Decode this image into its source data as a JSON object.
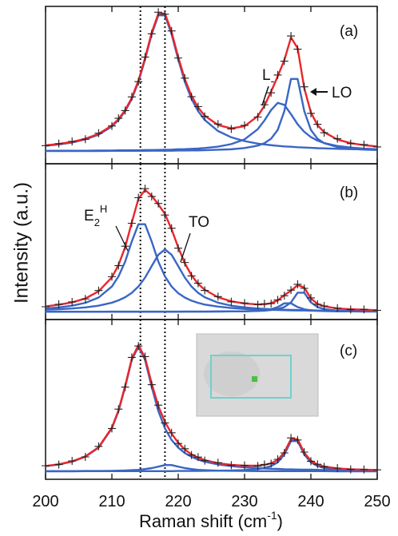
{
  "chart_data": [
    {
      "type": "line",
      "panel_label": "(a)",
      "annotations": [
        {
          "text": "L",
          "sub": "-"
        },
        {
          "text": "LO"
        }
      ],
      "xlim": [
        200,
        250
      ],
      "ylim": [
        0,
        100
      ],
      "xticks": [
        200,
        210,
        220,
        230,
        240,
        250
      ],
      "vlines": [
        214.3,
        218
      ],
      "x": [
        200,
        202,
        204,
        206,
        208,
        210,
        211,
        212,
        213,
        214,
        215,
        216,
        217,
        218,
        219,
        220,
        221,
        222,
        223,
        224,
        226,
        228,
        230,
        232,
        233,
        234,
        235,
        236,
        237,
        238,
        239,
        240,
        241,
        242,
        244,
        246,
        248,
        250
      ],
      "series": [
        {
          "color": "#3a66c4",
          "style": "line",
          "values": [
            11.4,
            12.3,
            13.5,
            15.5,
            18.5,
            23.7,
            27.8,
            33.4,
            41.2,
            52,
            66.3,
            82.3,
            94.3,
            94.3,
            82.3,
            66.3,
            52,
            41.2,
            33.4,
            27.8,
            20.8,
            16.8,
            14.4,
            12.8,
            12.3,
            11.8,
            11.4,
            11,
            10.8,
            10.5,
            10.3,
            10.1,
            9.9,
            9.8,
            9.5,
            9.3,
            9.2,
            9
          ]
        },
        {
          "color": "#3a66c4",
          "style": "line",
          "values": [
            8.2,
            8.3,
            8.3,
            8.3,
            8.4,
            8.4,
            8.5,
            8.5,
            8.6,
            8.6,
            8.7,
            8.7,
            8.8,
            8.9,
            9,
            9.2,
            9.3,
            9.5,
            9.7,
            10,
            10.9,
            12.5,
            15.5,
            22,
            27.5,
            34.1,
            38.7,
            37.4,
            31.5,
            25.1,
            20.3,
            17,
            14.7,
            13.2,
            11.3,
            10.3,
            9.6,
            9.2
          ]
        },
        {
          "color": "#3a66c4",
          "style": "line",
          "values": [
            8.1,
            8.1,
            8.1,
            8.1,
            8.1,
            8.2,
            8.2,
            8.2,
            8.2,
            8.2,
            8.2,
            8.3,
            8.3,
            8.3,
            8.3,
            8.4,
            8.4,
            8.5,
            8.5,
            8.6,
            8.9,
            9.2,
            10,
            11.5,
            13.1,
            15.9,
            21.5,
            33.5,
            53.9,
            53.9,
            33.5,
            21.5,
            15.9,
            13.1,
            10.6,
            9.5,
            9,
            8.7
          ]
        },
        {
          "color": "#e8262b",
          "style": "line",
          "values": [
            11.7,
            12.6,
            13.9,
            15.9,
            19,
            24.3,
            28.4,
            34.1,
            41.9,
            52.8,
            67.2,
            83.3,
            95.4,
            95.5,
            83.7,
            67.8,
            53.7,
            43.2,
            35.7,
            30.5,
            24.6,
            22.5,
            23.9,
            30.3,
            36.9,
            45.8,
            55.6,
            65.9,
            80.2,
            73.5,
            48.1,
            32.6,
            24.5,
            20.1,
            15.4,
            13.1,
            11.8,
            11
          ]
        },
        {
          "color": "#222222",
          "style": "cross",
          "values": [
            11.5,
            12.8,
            14.2,
            15.6,
            19.4,
            24,
            28.9,
            33.8,
            42.5,
            52.2,
            67.8,
            82.6,
            96.3,
            95,
            84.4,
            67.2,
            54.4,
            42.6,
            36.3,
            30.1,
            25.2,
            22.1,
            24.4,
            29.7,
            37.5,
            45.1,
            56.4,
            65.2,
            81.2,
            72.8,
            48.9,
            32,
            25.1,
            19.7,
            15.9,
            12.8,
            12.2,
            10.7
          ]
        }
      ]
    },
    {
      "type": "line",
      "panel_label": "(b)",
      "ylabel": "Intensity (a.u.)",
      "annotations": [
        {
          "text": "E",
          "sub": "2",
          "sup": "H"
        },
        {
          "text": "TO"
        }
      ],
      "xlim": [
        200,
        250
      ],
      "ylim": [
        0,
        100
      ],
      "xticks": [
        200,
        210,
        220,
        230,
        240,
        250
      ],
      "vlines": [
        214.3,
        218
      ],
      "x": [
        200,
        202,
        204,
        206,
        208,
        210,
        211,
        212,
        213,
        214,
        215,
        216,
        217,
        218,
        219,
        220,
        221,
        222,
        223,
        224,
        226,
        228,
        230,
        232,
        233,
        234,
        235,
        236,
        237,
        238,
        239,
        240,
        241,
        242,
        244,
        246,
        248,
        250
      ],
      "series": [
        {
          "color": "#3a66c4",
          "style": "line",
          "values": [
            7.1,
            7.8,
            8.9,
            10.7,
            14.1,
            21.2,
            27.7,
            37.2,
            50.1,
            61.2,
            61.2,
            50.1,
            37.2,
            27.7,
            21.2,
            16.9,
            14.1,
            12.1,
            10.7,
            9.6,
            8.3,
            7.4,
            6.8,
            6.5,
            6.3,
            6.2,
            6.1,
            6,
            5.9,
            5.8,
            5.8,
            5.7,
            5.6,
            5.6,
            5.5,
            5.5,
            5.4,
            5.4
          ]
        },
        {
          "color": "#3a66c4",
          "style": "line",
          "values": [
            6.3,
            6.6,
            7.1,
            7.8,
            8.9,
            10.8,
            12.3,
            14.3,
            17.1,
            21.2,
            26.9,
            34.3,
            41.6,
            45,
            41.6,
            34.3,
            26.9,
            21.2,
            17.1,
            14.3,
            10.8,
            8.9,
            7.8,
            7.1,
            6.8,
            6.6,
            6.5,
            6.3,
            6.2,
            6.1,
            6,
            5.9,
            5.8,
            5.7,
            5.6,
            5.6,
            5.5,
            5.4
          ]
        },
        {
          "color": "#3a66c4",
          "style": "line",
          "values": [
            5,
            5,
            5,
            5,
            5,
            5,
            5,
            5,
            5,
            5,
            5,
            5,
            5,
            5,
            5,
            5,
            5.1,
            5.1,
            5.1,
            5.1,
            5.1,
            5.2,
            5.3,
            5.6,
            5.9,
            6.6,
            8,
            10.4,
            10.4,
            8,
            6.6,
            5.9,
            5.6,
            5.4,
            5.2,
            5.2,
            5.1,
            5.1
          ]
        },
        {
          "color": "#3a66c4",
          "style": "line",
          "values": [
            5,
            5,
            5,
            5,
            5,
            5.1,
            5.1,
            5.1,
            5.1,
            5.1,
            5.1,
            5.1,
            5.1,
            5.1,
            5.1,
            5.1,
            5.1,
            5.1,
            5.1,
            5.1,
            5.2,
            5.2,
            5.3,
            5.5,
            5.7,
            6.1,
            6.7,
            8,
            11,
            17.2,
            17.2,
            11,
            8,
            6.7,
            5.7,
            5.4,
            5.3,
            5.2
          ]
        },
        {
          "color": "#e8262b",
          "style": "line",
          "values": [
            8.4,
            9.5,
            11,
            13.5,
            18.1,
            27.1,
            35,
            46.5,
            62.3,
            77.5,
            83.2,
            79.5,
            73.9,
            67.8,
            57.9,
            46.3,
            36.1,
            28.4,
            22.9,
            19.1,
            14.3,
            11.7,
            10.3,
            9.7,
            9.8,
            10.5,
            12.2,
            15.7,
            18.5,
            22.1,
            20.5,
            13.5,
            10,
            8.5,
            7.1,
            6.6,
            6.3,
            6
          ]
        },
        {
          "color": "#222222",
          "style": "cross",
          "values": [
            8.2,
            9.8,
            11.3,
            13.2,
            18.6,
            27.5,
            34.6,
            47.1,
            61.8,
            78.2,
            84,
            79,
            74.5,
            67.1,
            58.6,
            45.8,
            36.6,
            28,
            23.3,
            18.7,
            14.7,
            11.4,
            10.6,
            9.5,
            10.1,
            10.2,
            12.6,
            15.3,
            18.9,
            22.6,
            20,
            13.9,
            9.8,
            8.7,
            7.3,
            6.4,
            6.5,
            5.9
          ]
        }
      ]
    },
    {
      "type": "line",
      "panel_label": "(c)",
      "xlabel": {
        "text": "Raman shift (cm",
        "sup": "-1",
        "tail": ")"
      },
      "xlim": [
        200,
        250
      ],
      "ylim": [
        0,
        100
      ],
      "xticks": [
        200,
        210,
        220,
        230,
        240,
        250
      ],
      "vlines": [
        214.3,
        218
      ],
      "x": [
        200,
        202,
        204,
        206,
        208,
        210,
        211,
        212,
        213,
        214,
        215,
        216,
        217,
        218,
        219,
        220,
        221,
        222,
        223,
        224,
        226,
        228,
        230,
        232,
        233,
        234,
        235,
        236,
        237,
        238,
        239,
        240,
        241,
        242,
        244,
        246,
        248,
        250
      ],
      "series": [
        {
          "color": "#3a66c4",
          "style": "line",
          "values": [
            8.2,
            9.3,
            11,
            14.1,
            19.8,
            31.9,
            42.7,
            57.8,
            74.7,
            83,
            74.7,
            57.8,
            42.7,
            31.9,
            24.6,
            19.8,
            16.4,
            14.1,
            12.3,
            11,
            9.3,
            8.2,
            7.5,
            7,
            6.8,
            6.6,
            6.5,
            6.3,
            6.2,
            6.1,
            6,
            6,
            5.9,
            5.8,
            5.7,
            5.6,
            5.6,
            5.5
          ]
        },
        {
          "color": "#3a66c4",
          "style": "line",
          "values": [
            5.1,
            5.1,
            5.1,
            5.2,
            5.2,
            5.3,
            5.4,
            5.5,
            5.7,
            5.9,
            6.4,
            7,
            7.9,
            8.9,
            8.9,
            7.9,
            7,
            6.4,
            5.9,
            5.7,
            5.4,
            5.3,
            5.2,
            5.1,
            5.1,
            5.1,
            5.1,
            5.1,
            5.1,
            5.1,
            5.1,
            5.1,
            5.1,
            5.1,
            5,
            5,
            5,
            5
          ]
        },
        {
          "color": "#3a66c4",
          "style": "line",
          "values": [
            5,
            5,
            5,
            5.1,
            5.1,
            5.1,
            5.1,
            5.1,
            5.1,
            5.1,
            5.1,
            5.1,
            5.1,
            5.1,
            5.1,
            5.2,
            5.2,
            5.2,
            5.2,
            5.3,
            5.4,
            5.5,
            5.8,
            6.4,
            7.1,
            8.3,
            10.6,
            15.5,
            23.9,
            23.9,
            15.5,
            10.6,
            8.3,
            7.1,
            6.1,
            5.6,
            5.4,
            5.3
          ]
        },
        {
          "color": "#e8262b",
          "style": "line",
          "values": [
            8.3,
            9.4,
            11.2,
            14.3,
            20.1,
            32.3,
            43.2,
            58.4,
            75.5,
            84,
            76.1,
            59.9,
            45.8,
            35.9,
            28.6,
            22.9,
            18.6,
            15.6,
            13.5,
            12,
            10.1,
            9,
            8.5,
            8.5,
            9,
            10,
            12.1,
            16.9,
            25.2,
            25.1,
            16.6,
            11.6,
            9.2,
            8,
            6.8,
            6.3,
            6,
            5.8
          ]
        },
        {
          "color": "#222222",
          "style": "cross",
          "values": [
            8.5,
            9.2,
            11.5,
            14,
            20.6,
            31.8,
            43.9,
            57.7,
            76.3,
            83.4,
            76.8,
            59.2,
            46.4,
            35.3,
            29.1,
            22.4,
            19.1,
            15.2,
            13.9,
            11.7,
            10.4,
            8.8,
            8.7,
            8.3,
            9.3,
            9.8,
            12.5,
            16.5,
            25.9,
            24.6,
            17,
            11.3,
            9.4,
            7.8,
            7,
            6.2,
            6.1,
            5.9
          ]
        }
      ]
    }
  ]
}
